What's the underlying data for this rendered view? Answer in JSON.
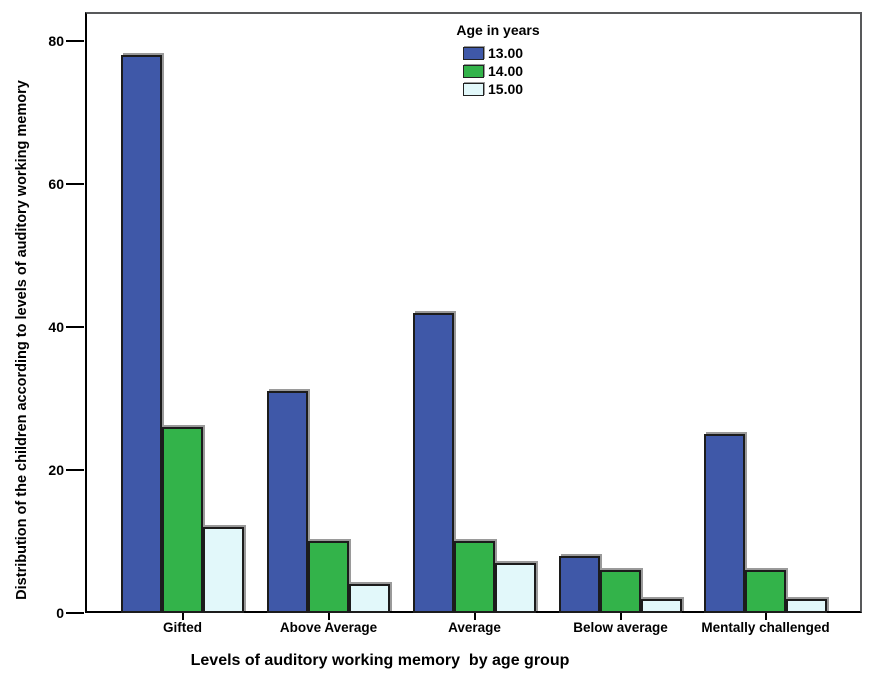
{
  "chart_data": {
    "type": "bar",
    "title": "",
    "xlabel": "Levels of auditory working memory  by age group",
    "ylabel": "Distribution of the children according to levels of auditory working memory",
    "categories": [
      "Gifted",
      "Above Average",
      "Average",
      "Below average",
      "Mentally challenged"
    ],
    "series": [
      {
        "name": "13.00",
        "color": "#3F58A8",
        "values": [
          78,
          31,
          42,
          8,
          25
        ]
      },
      {
        "name": "14.00",
        "color": "#33B34A",
        "values": [
          26,
          10,
          10,
          6,
          6
        ]
      },
      {
        "name": "15.00",
        "color": "#E2F8FA",
        "values": [
          12,
          4,
          7,
          2,
          2
        ]
      }
    ],
    "legend_title": "Age in years",
    "legend_position": "top-center",
    "yticks": [
      0,
      20,
      40,
      60,
      80
    ],
    "ylim": [
      0,
      84
    ],
    "grid": false,
    "background": "#ffffff",
    "bar_border_color": "#1c1c1c",
    "axis_color": "#000000"
  }
}
